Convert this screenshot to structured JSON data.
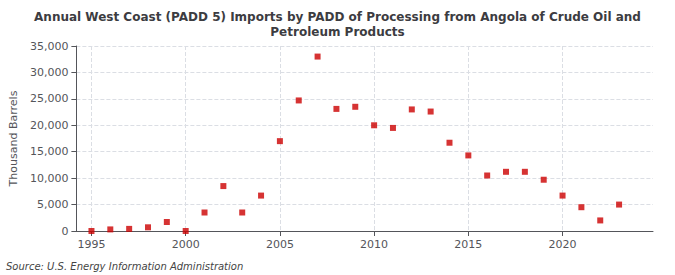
{
  "chart_data": {
    "type": "scatter",
    "title": "Annual West Coast (PADD 5) Imports by PADD of Processing from Angola of Crude Oil and\nPetroleum Products",
    "ylabel": "Thousand Barrels",
    "annotations": [
      "Source: U.S. Energy Information Administration"
    ],
    "x": [
      1995,
      1996,
      1997,
      1998,
      1999,
      2000,
      2001,
      2002,
      2003,
      2004,
      2005,
      2006,
      2007,
      2008,
      2009,
      2010,
      2011,
      2012,
      2013,
      2014,
      2015,
      2016,
      2017,
      2018,
      2019,
      2020,
      2021,
      2022,
      2023
    ],
    "values": [
      0,
      300,
      400,
      700,
      1700,
      0,
      3500,
      8500,
      3500,
      6700,
      17000,
      24700,
      33000,
      23100,
      23500,
      20000,
      19500,
      23000,
      22600,
      16700,
      14300,
      10500,
      11200,
      11200,
      9700,
      6700,
      4500,
      2000,
      5000
    ],
    "color": "#cc0000",
    "marker": "square",
    "xlim": [
      1994.2,
      2024.8
    ],
    "xticks": [
      1995,
      2000,
      2005,
      2010,
      2015,
      2020
    ],
    "ylim": [
      0,
      35000
    ],
    "yticks": [
      0,
      {
        "value": 5000,
        "label": "5,000"
      },
      {
        "value": 10000,
        "label": "10,000"
      },
      {
        "value": 15000,
        "label": "15,000"
      },
      {
        "value": 20000,
        "label": "20,000"
      },
      {
        "value": 25000,
        "label": "25,000"
      },
      {
        "value": 30000,
        "label": "30,000"
      },
      {
        "value": 35000,
        "label": "35,000"
      }
    ],
    "grid": true
  }
}
